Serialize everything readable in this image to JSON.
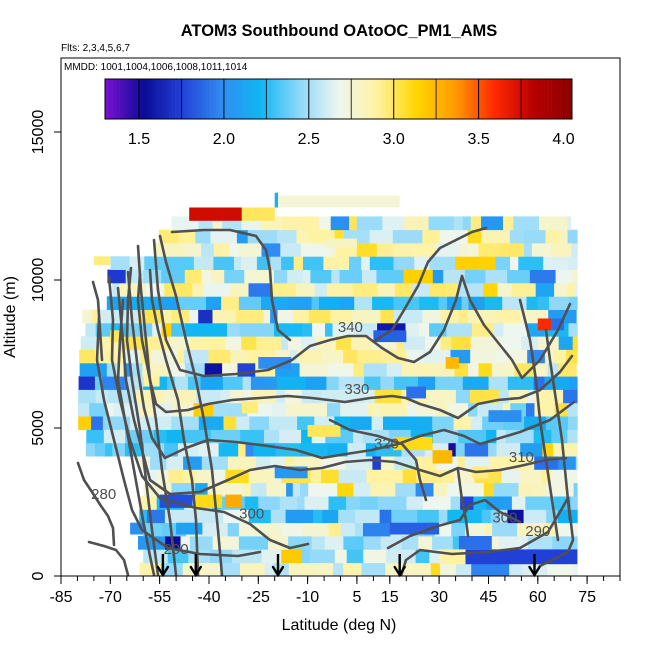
{
  "chart_data": {
    "type": "heatmap",
    "title": "ATOM3 Southbound OAtoOC_PM1_AMS",
    "subtitle_flights": "Flts: 2,3,4,5,6,7",
    "subtitle_dates": "MMDD: 1001,1004,1006,1008,1011,1014",
    "xlabel": "Latitude (deg N)",
    "ylabel": "Altitude (m)",
    "xlim": [
      -85,
      85
    ],
    "ylim": [
      0,
      17500
    ],
    "x_ticks": [
      -85,
      -70,
      -55,
      -40,
      -25,
      -10,
      5,
      15,
      30,
      45,
      60,
      75
    ],
    "y_ticks": [
      0,
      5000,
      10000,
      15000
    ],
    "colorbar": {
      "min": 1.3,
      "max": 4.05,
      "ticks": [
        1.5,
        2.0,
        2.5,
        3.0,
        3.5,
        4.0
      ],
      "tick_labels": [
        "1.5",
        "2.0",
        "2.5",
        "3.0",
        "3.5",
        "4.0"
      ],
      "colors": [
        "#7b12d6",
        "#0a0a96",
        "#2242d8",
        "#2f8cf2",
        "#10b6f2",
        "#8fd8fa",
        "#eef6f0",
        "#fff2a0",
        "#ffd600",
        "#ff9a00",
        "#ff2a00",
        "#b80000",
        "#8a0000"
      ]
    },
    "contour_labels": [
      {
        "text": "340",
        "lat": 3,
        "alt": 8250
      },
      {
        "text": "330",
        "lat": 5,
        "alt": 6150
      },
      {
        "text": "320",
        "lat": 14,
        "alt": 4300
      },
      {
        "text": "310",
        "lat": 55,
        "alt": 3850
      },
      {
        "text": "300",
        "lat": -27,
        "alt": 1950
      },
      {
        "text": "300",
        "lat": 50,
        "alt": 1800
      },
      {
        "text": "290",
        "lat": -50,
        "alt": 750
      },
      {
        "text": "290",
        "lat": 60,
        "alt": 1350
      },
      {
        "text": "280",
        "lat": -72,
        "alt": 2600
      }
    ],
    "flight_arrows_lat": [
      -54,
      -44,
      -19,
      18,
      59
    ],
    "colors": {
      "contour": "#505050",
      "axis": "#000000",
      "contour_label": "#505050"
    }
  }
}
